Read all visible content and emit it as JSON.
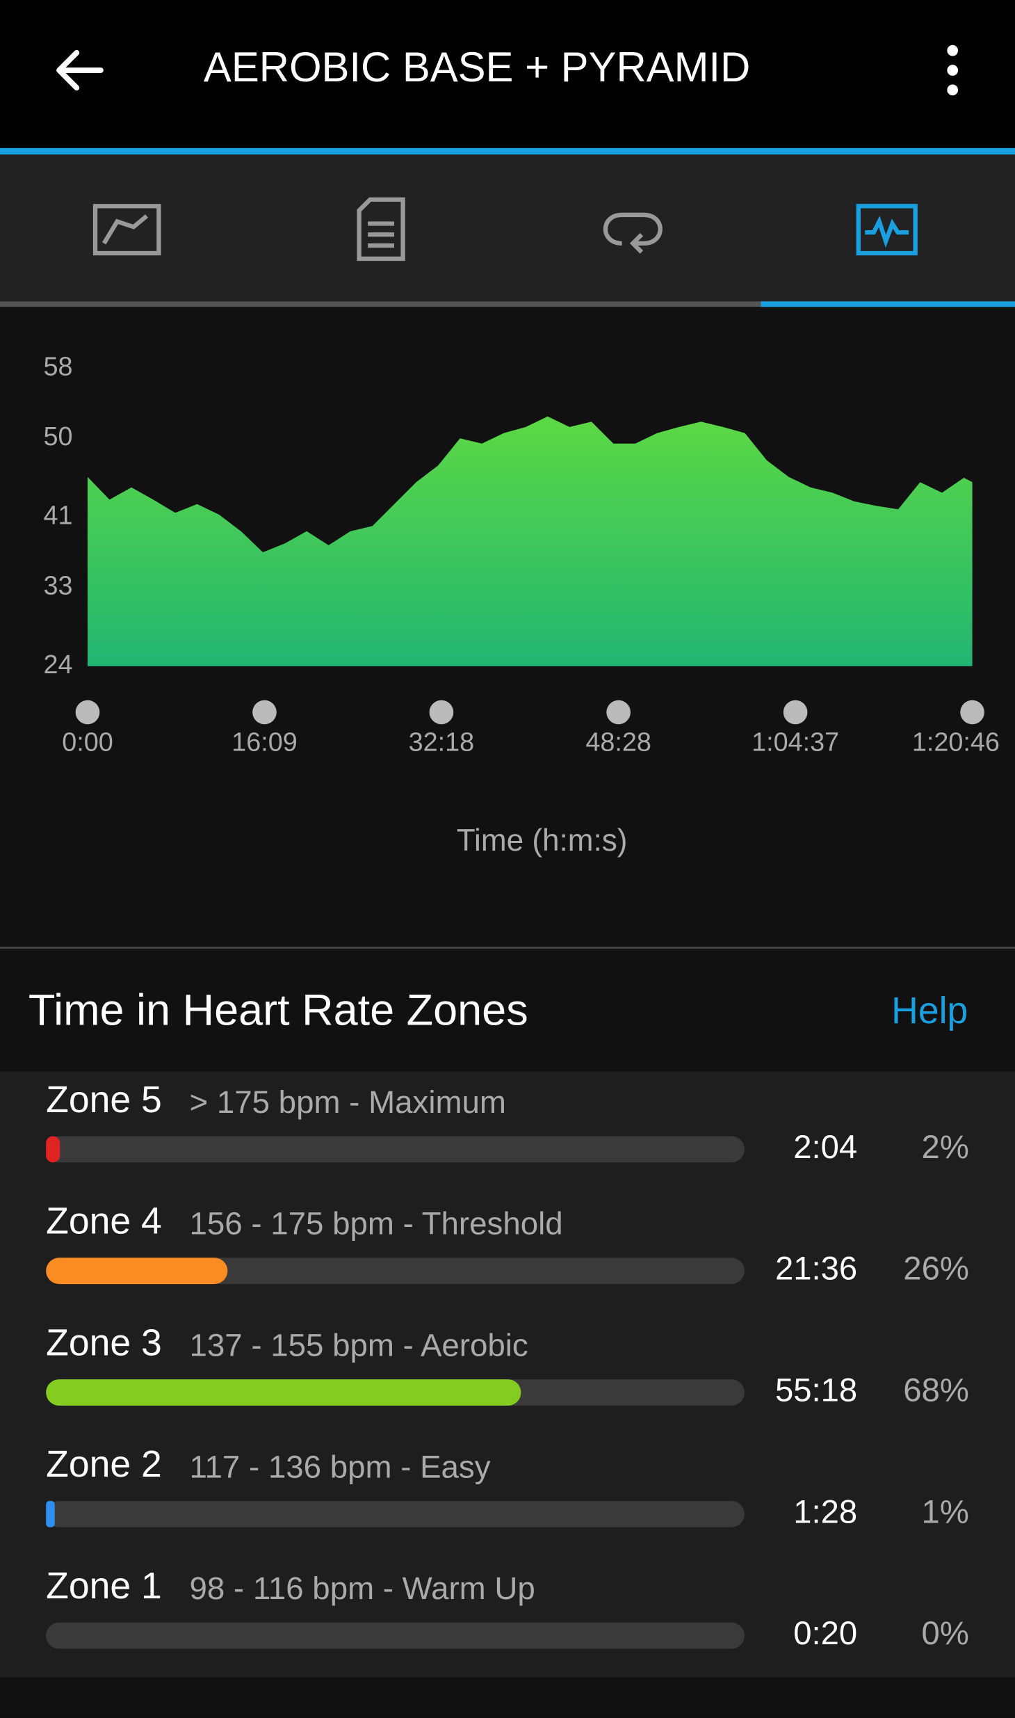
{
  "header": {
    "title": "AEROBIC BASE + PYRAMID"
  },
  "chart_data": {
    "type": "area",
    "x_label": "Time (h:m:s)",
    "x": [
      0,
      120,
      240,
      360,
      480,
      600,
      720,
      840,
      960,
      1080,
      1200,
      1320,
      1440,
      1560,
      1680,
      1800,
      1920,
      2040,
      2160,
      2280,
      2400,
      2520,
      2640,
      2760,
      2880,
      3000,
      3120,
      3240,
      3360,
      3480,
      3600,
      3720,
      3840,
      3960,
      4080,
      4200,
      4320,
      4440,
      4560,
      4680,
      4800,
      4846
    ],
    "values": [
      45.6,
      43,
      44.4,
      43,
      41.5,
      42.5,
      41.3,
      39.4,
      37,
      38,
      39.4,
      37.8,
      39.4,
      40,
      42.5,
      45,
      46.9,
      50,
      49.4,
      50.6,
      51.3,
      52.5,
      51.3,
      51.9,
      49.4,
      49.4,
      50.6,
      51.3,
      51.9,
      51.3,
      50.6,
      47.5,
      45.6,
      44.4,
      43.8,
      42.8,
      42.3,
      41.9,
      45,
      43.8,
      45.5,
      45
    ],
    "colors": [
      "#5cd944",
      "#22b573"
    ],
    "xlim": [
      0,
      4846
    ],
    "xticks": [
      {
        "value": 0,
        "label": "0:00"
      },
      {
        "value": 969,
        "label": "16:09"
      },
      {
        "value": 1938,
        "label": "32:18"
      },
      {
        "value": 2908,
        "label": "48:28"
      },
      {
        "value": 3877,
        "label": "1:04:37"
      },
      {
        "value": 4846,
        "label": "1:20:46"
      }
    ],
    "ylim": [
      24,
      58
    ],
    "yticks": [
      24,
      33,
      41,
      50,
      58
    ]
  },
  "zones": {
    "title": "Time in Heart Rate Zones",
    "help": "Help",
    "items": [
      {
        "name": "Zone 5",
        "range": "> 175 bpm - Maximum",
        "time": "2:04",
        "percent": 2,
        "percent_label": "2%",
        "color": "#e02424"
      },
      {
        "name": "Zone 4",
        "range": "156 - 175 bpm - Threshold",
        "time": "21:36",
        "percent": 26,
        "percent_label": "26%",
        "color": "#fb8c23"
      },
      {
        "name": "Zone 3",
        "range": "137 - 155 bpm - Aerobic",
        "time": "55:18",
        "percent": 68,
        "percent_label": "68%",
        "color": "#84cc1f"
      },
      {
        "name": "Zone 2",
        "range": "117 - 136 bpm - Easy",
        "time": "1:28",
        "percent": 1,
        "percent_label": "1%",
        "color": "#2f8ff0"
      },
      {
        "name": "Zone 1",
        "range": "98 - 116 bpm - Warm Up",
        "time": "0:20",
        "percent": 0,
        "percent_label": "0%",
        "color": "#888888"
      }
    ]
  }
}
